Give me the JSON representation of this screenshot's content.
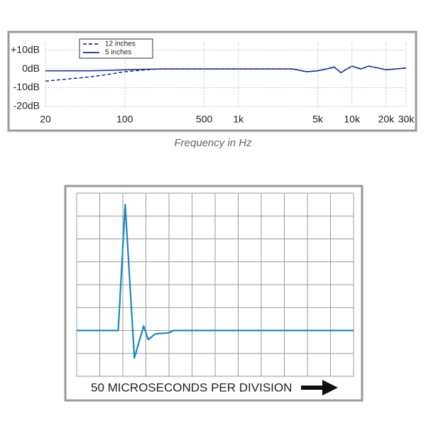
{
  "chart_data": [
    {
      "type": "line",
      "x_label": "Frequency in Hz",
      "xscale": "log",
      "grid": true,
      "legend": "upper left",
      "x": [
        20,
        30,
        50,
        70,
        100,
        150,
        200,
        500,
        1000,
        3000,
        4000,
        5000,
        6000,
        7000,
        8000,
        9000,
        10000,
        12000,
        14000,
        17000,
        20000,
        30000
      ],
      "series": [
        {
          "name": "12 inches",
          "color": "#1b2d8c",
          "line_style": "dashed",
          "values": [
            -6.5,
            -5.5,
            -4.2,
            -3,
            -1.5,
            -0.5,
            0,
            0,
            0,
            0,
            -1.5,
            -1,
            0,
            1,
            -2,
            0,
            1.5,
            0,
            1.5,
            0.5,
            -0.5,
            0.5
          ]
        },
        {
          "name": "5 inches",
          "color": "#1b2d8c",
          "line_style": "solid",
          "values": [
            -1,
            -1,
            -1,
            -0.8,
            -0.5,
            -0.2,
            0,
            0,
            0,
            0,
            -1.5,
            -1,
            0,
            1,
            -2,
            0,
            1.5,
            0,
            1.5,
            0.5,
            -0.5,
            0.5
          ]
        }
      ],
      "xlim": [
        20,
        30000
      ],
      "xticks": [
        20,
        100,
        500,
        {
          "value": 1000,
          "label": "1k"
        },
        {
          "value": 5000,
          "label": "5k"
        },
        {
          "value": 10000,
          "label": "10k"
        },
        {
          "value": 20000,
          "label": "20k"
        },
        {
          "value": 30000,
          "label": "30k"
        }
      ],
      "ylim": [
        -20,
        14
      ],
      "yticks": [
        {
          "value": 10,
          "label": "+10dB"
        },
        {
          "value": 0,
          "label": "0dB"
        },
        {
          "value": -10,
          "label": "-10dB"
        },
        {
          "value": -20,
          "label": "-20dB"
        }
      ]
    },
    {
      "type": "line",
      "x_label": "50 MICROSECONDS PER DIVISION",
      "grid": true,
      "tick_labels": false,
      "color": "#1a87c2",
      "x": [
        0,
        1.8,
        2.1,
        2.5,
        2.9,
        3.1,
        3.4,
        4,
        4.2,
        12
      ],
      "values": [
        2,
        2,
        7.5,
        0.8,
        2.2,
        1.6,
        1.85,
        1.9,
        2,
        2
      ],
      "xlim": [
        0,
        12
      ],
      "xticks": [
        0,
        1,
        2,
        3,
        4,
        5,
        6,
        7,
        8,
        9,
        10,
        11,
        12
      ],
      "ylim": [
        0,
        8
      ],
      "yticks": [
        0,
        1,
        2,
        3,
        4,
        5,
        6,
        7,
        8
      ]
    }
  ]
}
